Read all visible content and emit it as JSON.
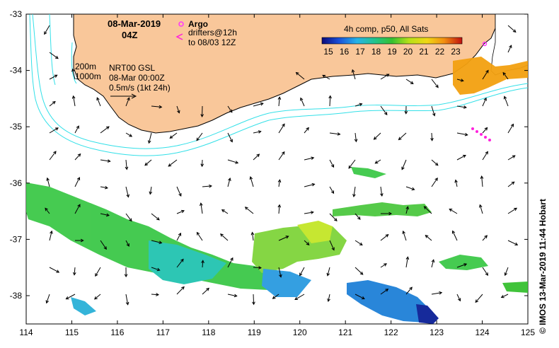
{
  "map": {
    "date": "08-Mar-2019",
    "time": "04Z",
    "argo_label": "Argo",
    "drifters_label": "drifters@12h",
    "drifters_to": "to 08/03 12Z",
    "isobath_200": "200m",
    "isobath_1000": "1000m",
    "model_label": "NRT00 GSL",
    "model_time": "08-Mar 00:00Z",
    "velocity_scale": "0.5m/s (1kt 24h)",
    "colorbar_title": "4h comp, p50, All Sats",
    "colorbar_ticks": [
      "15",
      "16",
      "17",
      "18",
      "19",
      "20",
      "21",
      "22",
      "23"
    ],
    "credit": "© IMOS 13-Mar-2019 11:44 Hobart",
    "x_ticks": [
      "114",
      "115",
      "116",
      "117",
      "118",
      "119",
      "120",
      "121",
      "122",
      "123",
      "124",
      "125"
    ],
    "y_ticks": [
      "-33",
      "-34",
      "-35",
      "-36",
      "-37",
      "-38"
    ],
    "colors": {
      "land": "#f9c79a",
      "isobath": "#33e0e8",
      "drifter": "#ff22dd",
      "argo": "#ff33ff"
    }
  }
}
